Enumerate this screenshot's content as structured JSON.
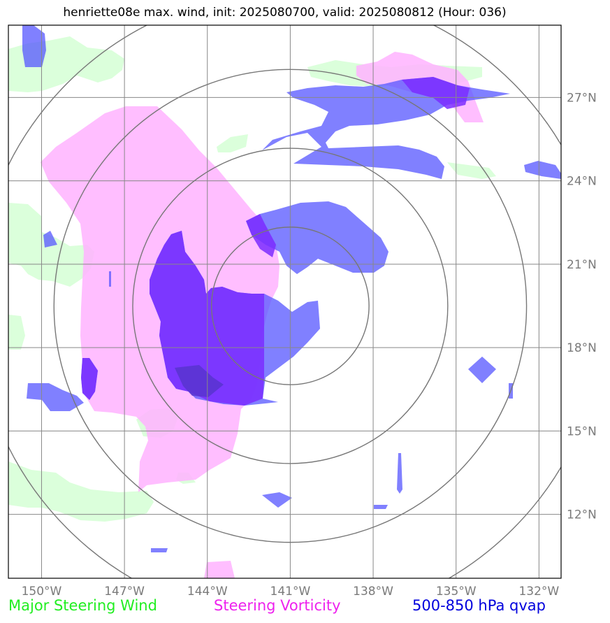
{
  "title": "henriette08e max. wind, init: 2025080700, valid: 2025080812 (Hour: 036)",
  "map": {
    "lon_ticks": [
      "150°W",
      "147°W",
      "144°W",
      "141°W",
      "138°W",
      "135°W",
      "132°W"
    ],
    "lat_ticks": [
      "27°N",
      "24°N",
      "21°N",
      "18°N",
      "15°N",
      "12°N"
    ],
    "lon_values": [
      -150,
      -147,
      -144,
      -141,
      -138,
      -135,
      -132
    ],
    "lat_values": [
      27,
      24,
      21,
      18,
      15,
      12
    ],
    "lon_range": [
      -151.2,
      -131.2
    ],
    "lat_range": [
      9.7,
      29.6
    ],
    "center": {
      "lon": -141.0,
      "lat": 19.5
    },
    "range_rings_deg": [
      2.85,
      5.7,
      8.55,
      11.4
    ],
    "colors": {
      "wind": "#33ff33",
      "vorticity": "#ff33ff",
      "qvap": "#1a1aff",
      "grid": "#888888",
      "ring": "#777777"
    }
  },
  "legend": {
    "wind": {
      "label": "Major Steering Wind",
      "color": "#22ee22"
    },
    "vorticity": {
      "label": "Steering Vorticity",
      "color": "#ee22ee"
    },
    "qvap": {
      "label": "500-850 hPa qvap",
      "color": "#0000dd"
    }
  }
}
